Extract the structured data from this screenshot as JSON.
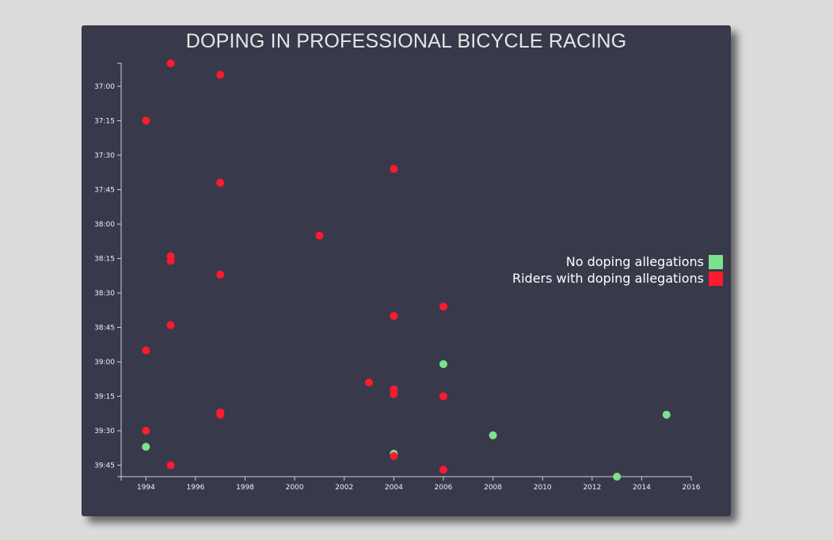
{
  "chart_data": {
    "type": "scatter",
    "title": "DOPING IN PROFESSIONAL BICYCLE RACING",
    "xlabel": "",
    "ylabel": "",
    "xlim": [
      1993,
      2016
    ],
    "ylim_seconds": [
      2210,
      2390
    ],
    "x_ticks": [
      1994,
      1996,
      1998,
      2000,
      2002,
      2004,
      2006,
      2008,
      2010,
      2012,
      2014,
      2016
    ],
    "y_ticks": [
      "37:00",
      "37:15",
      "37:30",
      "37:45",
      "38:00",
      "38:15",
      "38:30",
      "38:45",
      "39:00",
      "39:15",
      "39:30",
      "39:45"
    ],
    "colors": {
      "no_doping": "#7be38e",
      "doping": "#ff1a2e"
    },
    "legend": {
      "position": "right",
      "entries": [
        {
          "label": "No doping allegations",
          "key": "no_doping"
        },
        {
          "label": "Riders with doping allegations",
          "key": "doping"
        }
      ]
    },
    "points": [
      {
        "x": 1995,
        "y": "36:50",
        "doping": true
      },
      {
        "x": 1997,
        "y": "36:55",
        "doping": true
      },
      {
        "x": 1994,
        "y": "37:15",
        "doping": true
      },
      {
        "x": 2004,
        "y": "37:36",
        "doping": true
      },
      {
        "x": 1997,
        "y": "37:42",
        "doping": true
      },
      {
        "x": 2001,
        "y": "38:05",
        "doping": true
      },
      {
        "x": 1995,
        "y": "38:14",
        "doping": true
      },
      {
        "x": 1995,
        "y": "38:16",
        "doping": true
      },
      {
        "x": 1997,
        "y": "38:22",
        "doping": true
      },
      {
        "x": 2006,
        "y": "38:36",
        "doping": true
      },
      {
        "x": 2004,
        "y": "38:40",
        "doping": true
      },
      {
        "x": 1995,
        "y": "38:44",
        "doping": true
      },
      {
        "x": 1994,
        "y": "38:55",
        "doping": true
      },
      {
        "x": 2006,
        "y": "39:01",
        "doping": false
      },
      {
        "x": 2003,
        "y": "39:09",
        "doping": true
      },
      {
        "x": 2004,
        "y": "39:12",
        "doping": true
      },
      {
        "x": 2004,
        "y": "39:14",
        "doping": true
      },
      {
        "x": 2006,
        "y": "39:15",
        "doping": true
      },
      {
        "x": 1997,
        "y": "39:22",
        "doping": true
      },
      {
        "x": 1997,
        "y": "39:23",
        "doping": true
      },
      {
        "x": 2015,
        "y": "39:23",
        "doping": false
      },
      {
        "x": 1994,
        "y": "39:30",
        "doping": true
      },
      {
        "x": 2008,
        "y": "39:32",
        "doping": false
      },
      {
        "x": 1994,
        "y": "39:37",
        "doping": false
      },
      {
        "x": 2004,
        "y": "39:40",
        "doping": false
      },
      {
        "x": 2004,
        "y": "39:41",
        "doping": true
      },
      {
        "x": 1995,
        "y": "39:45",
        "doping": true
      },
      {
        "x": 2006,
        "y": "39:47",
        "doping": true
      },
      {
        "x": 2013,
        "y": "39:50",
        "doping": false
      }
    ]
  }
}
